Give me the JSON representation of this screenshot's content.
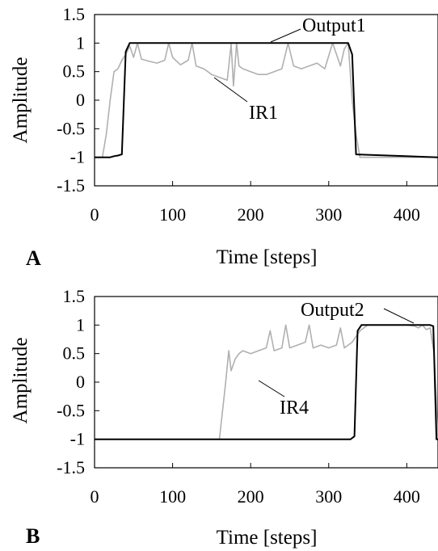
{
  "chart_data": [
    {
      "type": "line",
      "panel_label": "A",
      "xlabel": "Time [steps]",
      "ylabel": "Amplitude",
      "xlim": [
        0,
        440
      ],
      "ylim": [
        -1.5,
        1.5
      ],
      "xticks": [
        0,
        100,
        200,
        300,
        400
      ],
      "yticks": [
        1.5,
        1,
        0.5,
        0,
        -0.5,
        -1,
        -1.5
      ],
      "ytick_labels": [
        "1.5",
        "1",
        "0.5",
        "0",
        "-0.5",
        "-1",
        "-1.5"
      ],
      "grid": false,
      "series": [
        {
          "name": "Output1",
          "color": "#000000",
          "x": [
            0,
            20,
            25,
            30,
            35,
            40,
            45,
            325,
            330,
            335,
            440
          ],
          "y": [
            -1,
            -1,
            -0.98,
            -0.97,
            -0.95,
            0.85,
            1,
            1,
            0.8,
            -0.95,
            -1
          ]
        },
        {
          "name": "IR1",
          "color": "#b0b0b0",
          "x": [
            0,
            10,
            15,
            20,
            25,
            30,
            35,
            40,
            45,
            50,
            55,
            60,
            70,
            80,
            90,
            95,
            100,
            110,
            120,
            125,
            130,
            140,
            150,
            160,
            170,
            175,
            178,
            182,
            185,
            190,
            200,
            210,
            220,
            230,
            240,
            248,
            255,
            265,
            275,
            285,
            295,
            305,
            315,
            320,
            325,
            330,
            335,
            340,
            440
          ],
          "y": [
            -1,
            -1,
            -0.6,
            0.0,
            0.5,
            0.55,
            0.7,
            0.8,
            0.95,
            0.75,
            1.0,
            0.72,
            0.68,
            0.65,
            0.7,
            1.0,
            0.75,
            0.62,
            0.7,
            1.0,
            0.6,
            0.55,
            0.45,
            0.4,
            0.35,
            0.98,
            0.25,
            1.0,
            0.6,
            0.55,
            0.5,
            0.45,
            0.45,
            0.5,
            0.55,
            1.0,
            0.6,
            0.55,
            0.6,
            0.65,
            0.55,
            1.0,
            0.6,
            0.9,
            1.0,
            0.0,
            -0.6,
            -1,
            -1
          ]
        }
      ],
      "annotations": [
        "Output1",
        "IR1"
      ]
    },
    {
      "type": "line",
      "panel_label": "B",
      "xlabel": "Time [steps]",
      "ylabel": "Amplitude",
      "xlim": [
        0,
        440
      ],
      "ylim": [
        -1.5,
        1.5
      ],
      "xticks": [
        0,
        100,
        200,
        300,
        400
      ],
      "yticks": [
        1.5,
        1,
        0.5,
        0,
        -0.5,
        -1,
        -1.5
      ],
      "ytick_labels": [
        "1.5",
        "1",
        "0.5",
        "0",
        "-0.5",
        "-1",
        "-1.5"
      ],
      "grid": false,
      "series": [
        {
          "name": "Output2",
          "color": "#000000",
          "x": [
            0,
            328,
            333,
            337,
            342,
            430,
            434,
            438,
            440
          ],
          "y": [
            -1,
            -1,
            -0.95,
            0.9,
            1,
            1,
            0.98,
            -1,
            -1
          ]
        },
        {
          "name": "IR4",
          "color": "#b0b0b0",
          "x": [
            0,
            160,
            168,
            172,
            175,
            180,
            185,
            190,
            200,
            210,
            220,
            225,
            230,
            240,
            245,
            250,
            260,
            270,
            275,
            280,
            290,
            300,
            310,
            315,
            320,
            325,
            330,
            340,
            350,
            360,
            380,
            400,
            410,
            415,
            420,
            425,
            430,
            435,
            440
          ],
          "y": [
            -1,
            -1,
            0.0,
            0.55,
            0.2,
            0.4,
            0.5,
            0.55,
            0.5,
            0.55,
            0.6,
            0.9,
            0.55,
            0.6,
            1.0,
            0.6,
            0.65,
            0.7,
            1.0,
            0.6,
            0.65,
            0.6,
            0.65,
            0.95,
            0.6,
            0.65,
            0.7,
            0.9,
            1.0,
            1.0,
            1.0,
            1.0,
            0.98,
            0.95,
            1.0,
            0.92,
            0.95,
            0.5,
            -1
          ]
        }
      ],
      "annotations": [
        "Output2",
        "IR4"
      ]
    }
  ]
}
